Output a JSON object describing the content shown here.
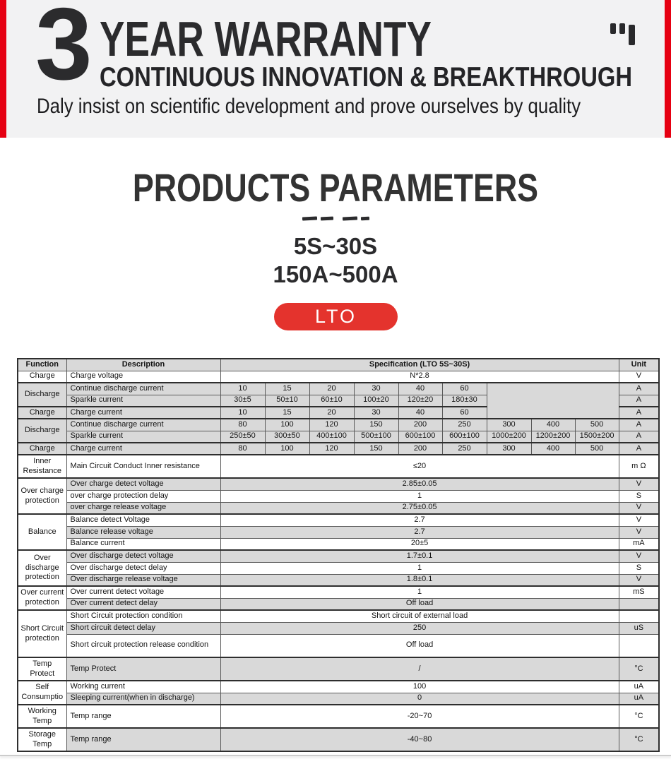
{
  "colors": {
    "accent_red": "#e60012",
    "chip_red": "#e4332d",
    "banner_bg": "#f2f2f3",
    "table_gray": "#d9d9d9",
    "text_dark": "#2b2b2d"
  },
  "banner": {
    "years": "3",
    "title": "YEAR WARRANTY",
    "subtitle": "CONTINUOUS INNOVATION & BREAKTHROUGH",
    "tagline": "Daly insist on scientific development and prove ourselves by quality",
    "icon": "quote-marks"
  },
  "section": {
    "title": "PRODUCTS PARAMETERS",
    "spec_lines": [
      "5S~30S",
      "150A~500A"
    ],
    "chip": "LTO"
  },
  "table": {
    "rows": [
      {
        "head": true,
        "cells": [
          {
            "t": "Function",
            "k": "fn"
          },
          {
            "t": "Description",
            "k": "d"
          },
          {
            "t": "Specification (LTO 5S~30S)",
            "k": "s",
            "c": 9
          },
          {
            "t": "Unit",
            "k": "u"
          }
        ]
      },
      {
        "sep": true,
        "cells": [
          {
            "t": "Charge",
            "k": "fn"
          },
          {
            "t": "Charge voltage",
            "k": "d"
          },
          {
            "t": "N*2.8",
            "k": "s",
            "c": 9
          },
          {
            "t": "V",
            "k": "u"
          }
        ]
      },
      {
        "cells": [
          {
            "t": "Discharge",
            "k": "fn",
            "r": 2,
            "g": 1,
            "bb": 1
          },
          {
            "t": "Continue discharge current",
            "k": "d",
            "g": 1
          },
          {
            "t": "10",
            "k": "s",
            "g": 1
          },
          {
            "t": "15",
            "k": "s",
            "g": 1
          },
          {
            "t": "20",
            "k": "s",
            "g": 1
          },
          {
            "t": "30",
            "k": "s",
            "g": 1
          },
          {
            "t": "40",
            "k": "s",
            "g": 1
          },
          {
            "t": "60",
            "k": "s",
            "g": 1
          },
          {
            "t": "",
            "k": "s",
            "c": 3,
            "r": 3,
            "g": 1,
            "bb": 1
          },
          {
            "t": "A",
            "k": "u",
            "g": 1
          }
        ]
      },
      {
        "sep": true,
        "cells": [
          {
            "t": "Sparkle current",
            "k": "d",
            "g": 1
          },
          {
            "t": "30±5",
            "k": "s",
            "g": 1
          },
          {
            "t": "50±10",
            "k": "s",
            "g": 1
          },
          {
            "t": "60±10",
            "k": "s",
            "g": 1
          },
          {
            "t": "100±20",
            "k": "s",
            "g": 1
          },
          {
            "t": "120±20",
            "k": "s",
            "g": 1
          },
          {
            "t": "180±30",
            "k": "s",
            "g": 1
          },
          {
            "t": "A",
            "k": "u",
            "g": 1
          }
        ]
      },
      {
        "sep": true,
        "cells": [
          {
            "t": "Charge",
            "k": "fn",
            "g": 1
          },
          {
            "t": "Charge current",
            "k": "d",
            "g": 1
          },
          {
            "t": "10",
            "k": "s",
            "g": 1
          },
          {
            "t": "15",
            "k": "s",
            "g": 1
          },
          {
            "t": "20",
            "k": "s",
            "g": 1
          },
          {
            "t": "30",
            "k": "s",
            "g": 1
          },
          {
            "t": "40",
            "k": "s",
            "g": 1
          },
          {
            "t": "60",
            "k": "s",
            "g": 1
          },
          {
            "t": "A",
            "k": "u",
            "g": 1
          }
        ]
      },
      {
        "cells": [
          {
            "t": "Discharge",
            "k": "fn",
            "r": 2,
            "g": 1,
            "bb": 1
          },
          {
            "t": "Continue discharge current",
            "k": "d",
            "g": 1
          },
          {
            "t": "80",
            "k": "s",
            "g": 1
          },
          {
            "t": "100",
            "k": "s",
            "g": 1
          },
          {
            "t": "120",
            "k": "s",
            "g": 1
          },
          {
            "t": "150",
            "k": "s",
            "g": 1
          },
          {
            "t": "200",
            "k": "s",
            "g": 1
          },
          {
            "t": "250",
            "k": "s",
            "g": 1
          },
          {
            "t": "300",
            "k": "s",
            "g": 1
          },
          {
            "t": "400",
            "k": "s",
            "g": 1
          },
          {
            "t": "500",
            "k": "s",
            "g": 1
          },
          {
            "t": "A",
            "k": "u",
            "g": 1
          }
        ]
      },
      {
        "sep": true,
        "cells": [
          {
            "t": "Sparkle current",
            "k": "d",
            "g": 1
          },
          {
            "t": "250±50",
            "k": "s",
            "g": 1
          },
          {
            "t": "300±50",
            "k": "s",
            "g": 1
          },
          {
            "t": "400±100",
            "k": "s",
            "g": 1
          },
          {
            "t": "500±100",
            "k": "s",
            "g": 1
          },
          {
            "t": "600±100",
            "k": "s",
            "g": 1
          },
          {
            "t": "600±100",
            "k": "s",
            "g": 1
          },
          {
            "t": "1000±200",
            "k": "s",
            "g": 1
          },
          {
            "t": "1200±200",
            "k": "s",
            "g": 1
          },
          {
            "t": "1500±200",
            "k": "s",
            "g": 1
          },
          {
            "t": "A",
            "k": "u",
            "g": 1
          }
        ]
      },
      {
        "sep": true,
        "cells": [
          {
            "t": "Charge",
            "k": "fn",
            "g": 1
          },
          {
            "t": "Charge current",
            "k": "d",
            "g": 1
          },
          {
            "t": "80",
            "k": "s",
            "g": 1
          },
          {
            "t": "100",
            "k": "s",
            "g": 1
          },
          {
            "t": "120",
            "k": "s",
            "g": 1
          },
          {
            "t": "150",
            "k": "s",
            "g": 1
          },
          {
            "t": "200",
            "k": "s",
            "g": 1
          },
          {
            "t": "250",
            "k": "s",
            "g": 1
          },
          {
            "t": "300",
            "k": "s",
            "g": 1
          },
          {
            "t": "400",
            "k": "s",
            "g": 1
          },
          {
            "t": "500",
            "k": "s",
            "g": 1
          },
          {
            "t": "A",
            "k": "u",
            "g": 1
          }
        ]
      },
      {
        "sep": true,
        "tall": true,
        "cells": [
          {
            "t": "Inner Resistance",
            "k": "fn"
          },
          {
            "t": "Main Circuit Conduct Inner resistance",
            "k": "d"
          },
          {
            "t": "≤20",
            "k": "s",
            "c": 9
          },
          {
            "t": "m Ω",
            "k": "u"
          }
        ]
      },
      {
        "cells": [
          {
            "t": "Over charge protection",
            "k": "fn",
            "r": 3,
            "bb": 1
          },
          {
            "t": "Over charge detect voltage",
            "k": "d",
            "g": 1
          },
          {
            "t": "2.85±0.05",
            "k": "s",
            "c": 9,
            "g": 1
          },
          {
            "t": "V",
            "k": "u",
            "g": 1
          }
        ]
      },
      {
        "cells": [
          {
            "t": "over charge protection delay",
            "k": "d"
          },
          {
            "t": "1",
            "k": "s",
            "c": 9
          },
          {
            "t": "S",
            "k": "u"
          }
        ]
      },
      {
        "sep": true,
        "cells": [
          {
            "t": "over charge release voltage",
            "k": "d",
            "g": 1
          },
          {
            "t": "2.75±0.05",
            "k": "s",
            "c": 9,
            "g": 1
          },
          {
            "t": "V",
            "k": "u",
            "g": 1
          }
        ]
      },
      {
        "cells": [
          {
            "t": "Balance",
            "k": "fn",
            "r": 3,
            "bb": 1
          },
          {
            "t": "Balance detect Voltage",
            "k": "d"
          },
          {
            "t": "2.7",
            "k": "s",
            "c": 9
          },
          {
            "t": "V",
            "k": "u"
          }
        ]
      },
      {
        "cells": [
          {
            "t": "Balance release voltage",
            "k": "d",
            "g": 1
          },
          {
            "t": "2.7",
            "k": "s",
            "c": 9,
            "g": 1
          },
          {
            "t": "V",
            "k": "u",
            "g": 1
          }
        ]
      },
      {
        "sep": true,
        "cells": [
          {
            "t": "Balance current",
            "k": "d"
          },
          {
            "t": "20±5",
            "k": "s",
            "c": 9
          },
          {
            "t": "mA",
            "k": "u"
          }
        ]
      },
      {
        "cells": [
          {
            "t": "Over discharge protection",
            "k": "fn",
            "r": 3,
            "bb": 1
          },
          {
            "t": "Over discharge detect voltage",
            "k": "d",
            "g": 1
          },
          {
            "t": "1.7±0.1",
            "k": "s",
            "c": 9,
            "g": 1
          },
          {
            "t": "V",
            "k": "u",
            "g": 1
          }
        ]
      },
      {
        "cells": [
          {
            "t": "Over discharge detect delay",
            "k": "d"
          },
          {
            "t": "1",
            "k": "s",
            "c": 9
          },
          {
            "t": "S",
            "k": "u"
          }
        ]
      },
      {
        "sep": true,
        "cells": [
          {
            "t": "Over discharge release voltage",
            "k": "d",
            "g": 1
          },
          {
            "t": "1.8±0.1",
            "k": "s",
            "c": 9,
            "g": 1
          },
          {
            "t": "V",
            "k": "u",
            "g": 1
          }
        ]
      },
      {
        "cells": [
          {
            "t": "Over current protection",
            "k": "fn",
            "r": 2,
            "bb": 1
          },
          {
            "t": "Over current detect voltage",
            "k": "d"
          },
          {
            "t": "1",
            "k": "s",
            "c": 9
          },
          {
            "t": "mS",
            "k": "u"
          }
        ]
      },
      {
        "sep": true,
        "cells": [
          {
            "t": "Over current detect delay",
            "k": "d",
            "g": 1
          },
          {
            "t": "Off load",
            "k": "s",
            "c": 9,
            "g": 1
          },
          {
            "t": "",
            "k": "u",
            "g": 1
          }
        ]
      },
      {
        "cells": [
          {
            "t": "Short Circuit protection",
            "k": "fn",
            "r": 3,
            "bb": 1
          },
          {
            "t": "Short Circuit protection condition",
            "k": "d"
          },
          {
            "t": "Short circuit of external load",
            "k": "s",
            "c": 9
          },
          {
            "t": "",
            "k": "u"
          }
        ]
      },
      {
        "cells": [
          {
            "t": "Short circuit detect delay",
            "k": "d",
            "g": 1
          },
          {
            "t": "250",
            "k": "s",
            "c": 9,
            "g": 1
          },
          {
            "t": "uS",
            "k": "u",
            "g": 1
          }
        ]
      },
      {
        "sep": true,
        "tall": true,
        "cells": [
          {
            "t": "Short circuit protection release condition",
            "k": "d"
          },
          {
            "t": "Off load",
            "k": "s",
            "c": 9
          },
          {
            "t": "",
            "k": "u"
          }
        ]
      },
      {
        "sep": true,
        "tall": true,
        "cells": [
          {
            "t": "Temp Protect",
            "k": "fn"
          },
          {
            "t": "Temp Protect",
            "k": "d",
            "g": 1
          },
          {
            "t": "/",
            "k": "s",
            "c": 9,
            "g": 1
          },
          {
            "t": "°C",
            "k": "u",
            "g": 1
          }
        ]
      },
      {
        "cells": [
          {
            "t": "Self Consumptio",
            "k": "fn",
            "r": 2,
            "bb": 1
          },
          {
            "t": "Working current",
            "k": "d"
          },
          {
            "t": "100",
            "k": "s",
            "c": 9
          },
          {
            "t": "uA",
            "k": "u"
          }
        ]
      },
      {
        "sep": true,
        "cells": [
          {
            "t": "Sleeping current(when  in discharge)",
            "k": "d",
            "g": 1
          },
          {
            "t": "0",
            "k": "s",
            "c": 9,
            "g": 1
          },
          {
            "t": "uA",
            "k": "u",
            "g": 1
          }
        ]
      },
      {
        "sep": true,
        "tall": true,
        "cells": [
          {
            "t": "Working Temp",
            "k": "fn"
          },
          {
            "t": "Temp range",
            "k": "d"
          },
          {
            "t": "-20~70",
            "k": "s",
            "c": 9
          },
          {
            "t": "°C",
            "k": "u"
          }
        ]
      },
      {
        "tall": true,
        "cells": [
          {
            "t": "Storage Temp",
            "k": "fn"
          },
          {
            "t": "Temp range",
            "k": "d",
            "g": 1
          },
          {
            "t": "-40~80",
            "k": "s",
            "c": 9,
            "g": 1
          },
          {
            "t": "°C",
            "k": "u",
            "g": 1
          }
        ]
      }
    ]
  }
}
